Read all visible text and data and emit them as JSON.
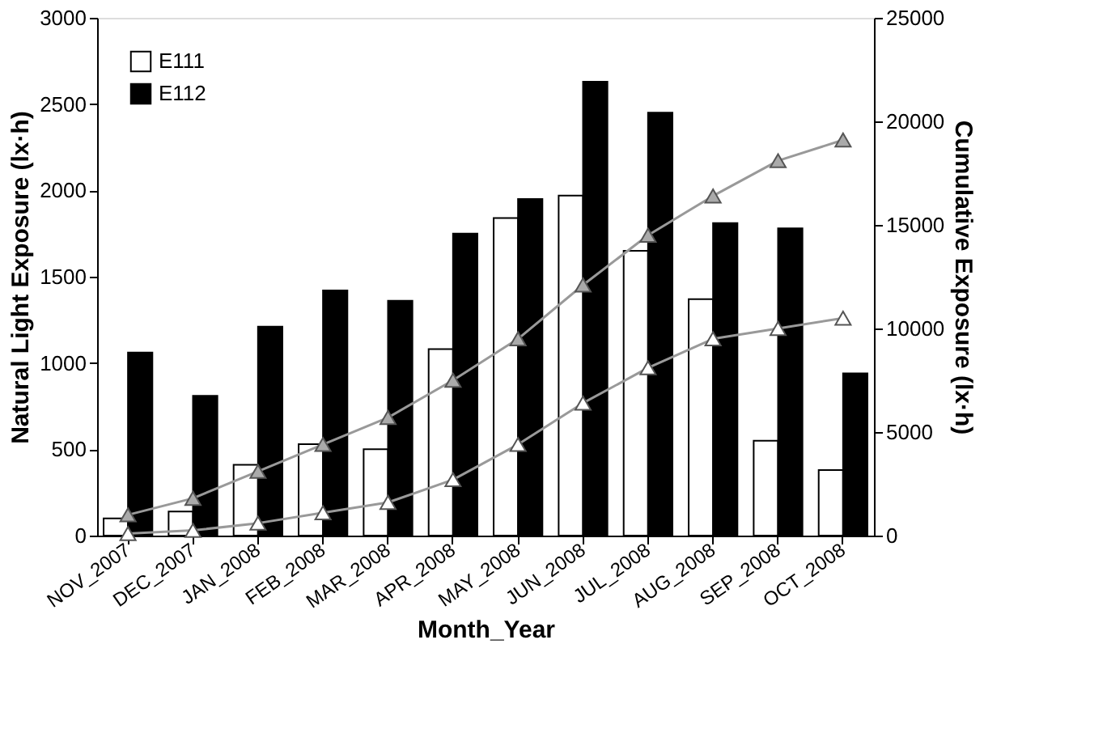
{
  "chart_data": {
    "type": "bar",
    "xlabel": "Month_Year",
    "ylabel": "Natural Light Exposure (lx·h)",
    "y2label": "Cumulative Exposure (lx·h)",
    "categories": [
      "NOV_2007",
      "DEC_2007",
      "JAN_2008",
      "FEB_2008",
      "MAR_2008",
      "APR_2008",
      "MAY_2008",
      "JUN_2008",
      "JUL_2008",
      "AUG_2008",
      "SEP_2008",
      "OCT_2008"
    ],
    "series": [
      {
        "name": "E111",
        "color": "#ffffff",
        "values": [
          100,
          140,
          410,
          530,
          500,
          1080,
          1840,
          1970,
          1650,
          1370,
          550,
          380
        ]
      },
      {
        "name": "E112",
        "color": "#000000",
        "values": [
          1060,
          810,
          1210,
          1420,
          1360,
          1750,
          1950,
          2630,
          2450,
          1810,
          1780,
          940
        ]
      },
      {
        "type": "line",
        "axis": "y2",
        "color": "#aaaaaa",
        "marker": "triangle",
        "values": [
          1000,
          1800,
          3100,
          4400,
          5700,
          7500,
          9500,
          12100,
          14500,
          16400,
          18100,
          19100
        ]
      },
      {
        "type": "line",
        "axis": "y2",
        "color": "#ffffff",
        "marker": "triangle",
        "values": [
          100,
          250,
          600,
          1100,
          1600,
          2700,
          4400,
          6400,
          8100,
          9500,
          10000,
          10500
        ]
      }
    ],
    "ylim": [
      0,
      3000
    ],
    "yticks": [
      0,
      500,
      1000,
      1500,
      2000,
      2500,
      3000
    ],
    "y2lim": [
      0,
      25000
    ],
    "y2ticks": [
      0,
      5000,
      10000,
      15000,
      20000,
      25000
    ],
    "grid": false,
    "legend": "top left"
  }
}
